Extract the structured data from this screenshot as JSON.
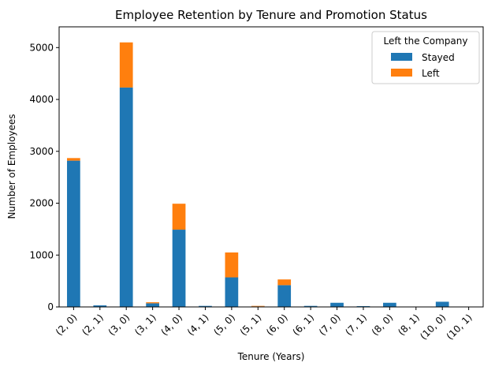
{
  "chart_data": {
    "type": "bar",
    "stacked": true,
    "title": "Employee Retention by Tenure and Promotion Status",
    "xlabel": "Tenure (Years)",
    "ylabel": "Number of Employees",
    "ylim": [
      0,
      5400
    ],
    "yticks": [
      0,
      1000,
      2000,
      3000,
      4000,
      5000
    ],
    "categories": [
      "(2, 0)",
      "(2, 1)",
      "(3, 0)",
      "(3, 1)",
      "(4, 0)",
      "(4, 1)",
      "(5, 0)",
      "(5, 1)",
      "(6, 0)",
      "(6, 1)",
      "(7, 0)",
      "(7, 1)",
      "(8, 0)",
      "(8, 1)",
      "(10, 0)",
      "(10, 1)"
    ],
    "series": [
      {
        "name": "Stayed",
        "color": "#1f77b4",
        "values": [
          2820,
          30,
          4230,
          70,
          1490,
          20,
          570,
          10,
          420,
          20,
          80,
          15,
          80,
          5,
          100,
          5
        ]
      },
      {
        "name": "Left",
        "color": "#ff7f0e",
        "values": [
          50,
          0,
          870,
          20,
          500,
          0,
          480,
          10,
          110,
          0,
          0,
          0,
          0,
          0,
          0,
          0
        ]
      }
    ],
    "legend": {
      "title": "Left the Company",
      "position": "top-right"
    },
    "grid": false
  }
}
